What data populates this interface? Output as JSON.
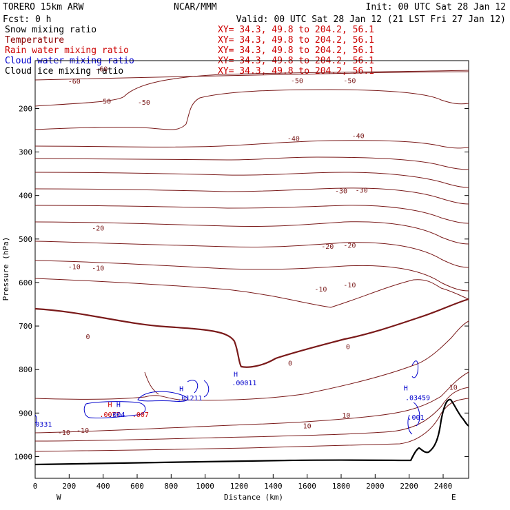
{
  "header": {
    "model": "TORERO  15km ARW",
    "org": "NCAR/MMM",
    "init": "Init: 00 UTC Sat 28 Jan 12",
    "fcst": "Fcst:    0 h",
    "valid": "Valid: 00 UTC Sat 28 Jan 12 (21 LST Fri 27 Jan 12)"
  },
  "fields": [
    {
      "name": "Snow mixing ratio",
      "xy": "XY=  34.3, 49.8 to 204.2, 56.1",
      "color": "#000000"
    },
    {
      "name": "Temperature",
      "xy": "XY=  34.3, 49.8 to 204.2, 56.1",
      "color": "#8b0000"
    },
    {
      "name": "Rain water mixing ratio",
      "xy": "XY=  34.3, 49.8 to 204.2, 56.1",
      "color": "#cc0000"
    },
    {
      "name": "Cloud water mixing ratio",
      "xy": "XY=  34.3, 49.8 to 204.2, 56.1",
      "color": "#0000cc"
    },
    {
      "name": "Cloud ice mixing ratio",
      "xy": "XY=  34.3, 49.8 to 204.2, 56.1",
      "color": "#000000"
    }
  ],
  "chart_data": {
    "type": "cross-section contour",
    "xlabel": "Distance (km)",
    "ylabel": "Pressure (hPa)",
    "xlim": [
      0,
      2550
    ],
    "ylim": [
      1050,
      90
    ],
    "x_ticks": [
      0,
      200,
      400,
      600,
      800,
      1000,
      1200,
      1400,
      1600,
      1800,
      2000,
      2200,
      2400
    ],
    "y_ticks": [
      200,
      300,
      400,
      500,
      600,
      700,
      800,
      900,
      1000
    ],
    "x_ends": {
      "left": "W",
      "right": "E"
    },
    "temperature_labels": [
      {
        "text": "-60",
        "x": 230,
        "y": 137
      },
      {
        "text": "-60",
        "x": 390,
        "y": 108
      },
      {
        "text": "-50",
        "x": 410,
        "y": 183
      },
      {
        "text": "-50",
        "x": 640,
        "y": 185
      },
      {
        "text": "-50",
        "x": 1540,
        "y": 135
      },
      {
        "text": "-50",
        "x": 1850,
        "y": 135
      },
      {
        "text": "-40",
        "x": 1520,
        "y": 268
      },
      {
        "text": "-40",
        "x": 1900,
        "y": 262
      },
      {
        "text": "-30",
        "x": 1800,
        "y": 389
      },
      {
        "text": "-30",
        "x": 1920,
        "y": 387
      },
      {
        "text": "-20",
        "x": 370,
        "y": 474
      },
      {
        "text": "-20",
        "x": 1720,
        "y": 516
      },
      {
        "text": "-20",
        "x": 1850,
        "y": 514
      },
      {
        "text": "-10",
        "x": 230,
        "y": 563
      },
      {
        "text": "-10",
        "x": 370,
        "y": 566
      },
      {
        "text": "-10",
        "x": 1680,
        "y": 614
      },
      {
        "text": "-10",
        "x": 1850,
        "y": 605
      },
      {
        "text": "0",
        "x": 310,
        "y": 724
      },
      {
        "text": "0",
        "x": 1500,
        "y": 785
      },
      {
        "text": "0",
        "x": 1840,
        "y": 747
      },
      {
        "text": "10",
        "x": 1600,
        "y": 929
      },
      {
        "text": "10",
        "x": 1830,
        "y": 904
      },
      {
        "text": "10",
        "x": 2460,
        "y": 840
      },
      {
        "text": "-10",
        "x": 170,
        "y": 944
      },
      {
        "text": "-10",
        "x": 280,
        "y": 939
      }
    ],
    "max_labels": [
      {
        "text": "H",
        "x": 440,
        "y": 880,
        "color": "#cc0000"
      },
      {
        "text": ".0077",
        "x": 440,
        "y": 903,
        "color": "#cc0000"
      },
      {
        "text": "H",
        "x": 490,
        "y": 880,
        "color": "#0000cc"
      },
      {
        "text": ".004",
        "x": 480,
        "y": 903,
        "color": "#0000cc"
      },
      {
        "text": ".007",
        "x": 620,
        "y": 903,
        "color": "#cc0000"
      },
      {
        "text": "H",
        "x": 860,
        "y": 843,
        "color": "#0000cc"
      },
      {
        "text": ".01211",
        "x": 910,
        "y": 865,
        "color": "#0000cc"
      },
      {
        "text": "H",
        "x": 1180,
        "y": 810,
        "color": "#0000cc"
      },
      {
        "text": ".00011",
        "x": 1230,
        "y": 830,
        "color": "#0000cc"
      },
      {
        "text": "H",
        "x": 2180,
        "y": 842,
        "color": "#0000cc"
      },
      {
        "text": ".03459",
        "x": 2250,
        "y": 864,
        "color": "#0000cc"
      },
      {
        "text": ".001",
        "x": 2240,
        "y": 909,
        "color": "#0000cc"
      },
      {
        "text": "0331",
        "x": 50,
        "y": 925,
        "color": "#0000cc"
      }
    ]
  }
}
